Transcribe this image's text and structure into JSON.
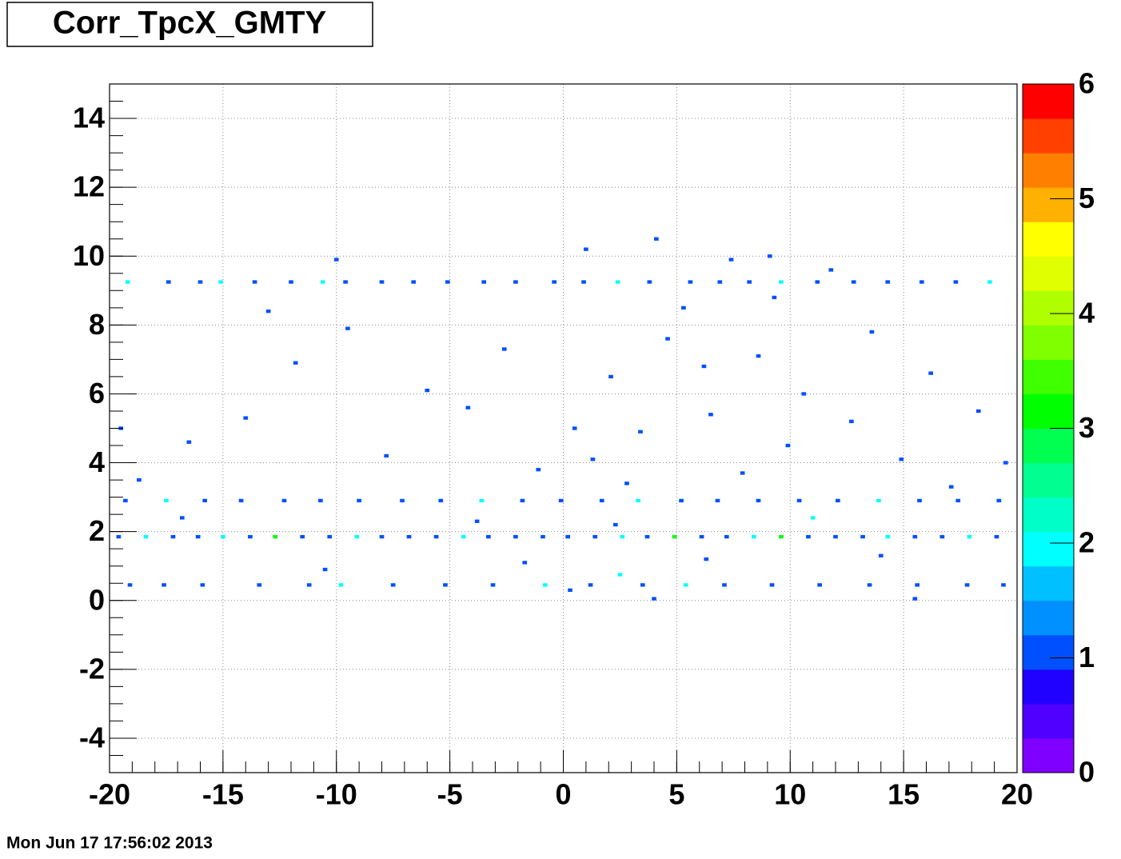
{
  "chart_data": {
    "type": "heatmap",
    "title": "Corr_TpcX_GMTY",
    "footer": "Mon Jun 17 17:56:02 2013",
    "xlim": [
      -20,
      20
    ],
    "xticks": [
      -20,
      -15,
      -10,
      -5,
      0,
      5,
      10,
      15,
      20
    ],
    "ylim": [
      -5,
      15
    ],
    "yticks": [
      -4,
      -2,
      0,
      2,
      4,
      6,
      8,
      10,
      12,
      14
    ],
    "zlim": [
      0,
      6
    ],
    "zticks": [
      0,
      1,
      2,
      3,
      4,
      5,
      6
    ],
    "grid": true,
    "palette": [
      "#8000ff",
      "#5000ff",
      "#2000ff",
      "#0050ff",
      "#0090ff",
      "#00c0ff",
      "#00ffff",
      "#00ffc8",
      "#00ff90",
      "#00ff50",
      "#00ff00",
      "#40ff00",
      "#80ff00",
      "#b0ff00",
      "#e0ff00",
      "#ffff00",
      "#ffb000",
      "#ff8000",
      "#ff4000",
      "#ff0000"
    ],
    "cells": [
      [
        -19.2,
        9.25,
        2
      ],
      [
        -17.4,
        9.25,
        1
      ],
      [
        -16,
        9.25,
        1
      ],
      [
        -15.1,
        9.25,
        2
      ],
      [
        -13.6,
        9.25,
        1
      ],
      [
        -12,
        9.25,
        1
      ],
      [
        -10.6,
        9.25,
        2
      ],
      [
        -9.6,
        9.25,
        1
      ],
      [
        -8,
        9.25,
        1
      ],
      [
        -6.6,
        9.25,
        1
      ],
      [
        -5.1,
        9.25,
        1
      ],
      [
        -3.5,
        9.25,
        1
      ],
      [
        -2.1,
        9.25,
        1
      ],
      [
        -0.4,
        9.25,
        1
      ],
      [
        0.9,
        9.25,
        1
      ],
      [
        2.4,
        9.25,
        2
      ],
      [
        3.8,
        9.25,
        1
      ],
      [
        5.6,
        9.25,
        1
      ],
      [
        6.9,
        9.25,
        1
      ],
      [
        8.2,
        9.25,
        1
      ],
      [
        9.6,
        9.25,
        2
      ],
      [
        11.2,
        9.25,
        1
      ],
      [
        12.8,
        9.25,
        1
      ],
      [
        14.3,
        9.25,
        1
      ],
      [
        15.8,
        9.25,
        1
      ],
      [
        17.3,
        9.25,
        1
      ],
      [
        18.8,
        9.25,
        2
      ],
      [
        -19.6,
        1.85,
        1
      ],
      [
        -18.4,
        1.85,
        2
      ],
      [
        -17.2,
        1.85,
        1
      ],
      [
        -16.1,
        1.85,
        1
      ],
      [
        -15,
        1.85,
        2
      ],
      [
        -13.8,
        1.85,
        1
      ],
      [
        -12.7,
        1.85,
        3
      ],
      [
        -11.5,
        1.85,
        1
      ],
      [
        -10.3,
        1.85,
        1
      ],
      [
        -9.1,
        1.85,
        2
      ],
      [
        -8,
        1.85,
        1
      ],
      [
        -6.8,
        1.85,
        1
      ],
      [
        -5.6,
        1.85,
        1
      ],
      [
        -4.4,
        1.85,
        2
      ],
      [
        -3.3,
        1.85,
        1
      ],
      [
        -2.1,
        1.85,
        1
      ],
      [
        -0.9,
        1.85,
        1
      ],
      [
        0.2,
        1.85,
        1
      ],
      [
        1.4,
        1.85,
        1
      ],
      [
        2.6,
        1.85,
        2
      ],
      [
        3.7,
        1.85,
        1
      ],
      [
        4.9,
        1.85,
        3
      ],
      [
        6.1,
        1.85,
        1
      ],
      [
        7.2,
        1.85,
        1
      ],
      [
        8.4,
        1.85,
        2
      ],
      [
        9.6,
        1.85,
        3
      ],
      [
        10.8,
        1.85,
        1
      ],
      [
        12,
        1.85,
        1
      ],
      [
        13.2,
        1.85,
        1
      ],
      [
        14.3,
        1.85,
        2
      ],
      [
        15.5,
        1.85,
        1
      ],
      [
        16.7,
        1.85,
        1
      ],
      [
        17.9,
        1.85,
        2
      ],
      [
        19.1,
        1.85,
        1
      ],
      [
        -19.3,
        2.9,
        1
      ],
      [
        -17.5,
        2.9,
        2
      ],
      [
        -15.8,
        2.9,
        1
      ],
      [
        -14.2,
        2.9,
        1
      ],
      [
        -12.3,
        2.9,
        1
      ],
      [
        -10.7,
        2.9,
        1
      ],
      [
        -9,
        2.9,
        1
      ],
      [
        -7.1,
        2.9,
        1
      ],
      [
        -5.4,
        2.9,
        1
      ],
      [
        -3.6,
        2.9,
        2
      ],
      [
        -1.8,
        2.9,
        1
      ],
      [
        -0.1,
        2.9,
        1
      ],
      [
        1.7,
        2.9,
        1
      ],
      [
        3.3,
        2.9,
        2
      ],
      [
        5.2,
        2.9,
        1
      ],
      [
        6.8,
        2.9,
        1
      ],
      [
        8.6,
        2.9,
        1
      ],
      [
        10.4,
        2.9,
        1
      ],
      [
        12.1,
        2.9,
        1
      ],
      [
        13.9,
        2.9,
        2
      ],
      [
        15.7,
        2.9,
        1
      ],
      [
        17.4,
        2.9,
        1
      ],
      [
        19.2,
        2.9,
        1
      ],
      [
        -19.1,
        0.45,
        1
      ],
      [
        -17.6,
        0.45,
        1
      ],
      [
        -15.9,
        0.45,
        1
      ],
      [
        -13.4,
        0.45,
        1
      ],
      [
        -11.2,
        0.45,
        1
      ],
      [
        -9.8,
        0.45,
        2
      ],
      [
        -7.5,
        0.45,
        1
      ],
      [
        -5.2,
        0.45,
        1
      ],
      [
        -3.1,
        0.45,
        1
      ],
      [
        -0.8,
        0.45,
        2
      ],
      [
        0.3,
        0.3,
        1
      ],
      [
        1.2,
        0.45,
        1
      ],
      [
        3.5,
        0.45,
        1
      ],
      [
        5.4,
        0.45,
        2
      ],
      [
        7.1,
        0.45,
        1
      ],
      [
        9.2,
        0.45,
        1
      ],
      [
        11.3,
        0.45,
        1
      ],
      [
        13.5,
        0.45,
        1
      ],
      [
        15.6,
        0.45,
        1
      ],
      [
        17.8,
        0.45,
        1
      ],
      [
        19.4,
        0.45,
        1
      ],
      [
        -18.7,
        3.5,
        1
      ],
      [
        -16.5,
        4.6,
        1
      ],
      [
        -14,
        5.3,
        1
      ],
      [
        -11.8,
        6.9,
        1
      ],
      [
        -9.5,
        7.9,
        1
      ],
      [
        -7.8,
        4.2,
        1
      ],
      [
        -6,
        6.1,
        1
      ],
      [
        -4.2,
        5.6,
        1
      ],
      [
        -2.6,
        7.3,
        1
      ],
      [
        -1.1,
        3.8,
        1
      ],
      [
        0.5,
        5,
        1
      ],
      [
        1.3,
        4.1,
        1
      ],
      [
        2.1,
        6.5,
        1
      ],
      [
        2.8,
        3.4,
        1
      ],
      [
        3.4,
        4.9,
        1
      ],
      [
        4.1,
        10.5,
        1
      ],
      [
        4.6,
        7.6,
        1
      ],
      [
        5.3,
        8.5,
        1
      ],
      [
        6.2,
        6.8,
        1
      ],
      [
        6.5,
        5.4,
        1
      ],
      [
        7.4,
        9.9,
        1
      ],
      [
        7.9,
        3.7,
        1
      ],
      [
        8.6,
        7.1,
        1
      ],
      [
        9.3,
        8.8,
        1
      ],
      [
        9.9,
        4.5,
        1
      ],
      [
        10.6,
        6,
        1
      ],
      [
        11.8,
        9.6,
        1
      ],
      [
        12.7,
        5.2,
        1
      ],
      [
        13.6,
        7.8,
        1
      ],
      [
        14.9,
        4.1,
        1
      ],
      [
        16.2,
        6.6,
        1
      ],
      [
        17.1,
        3.3,
        1
      ],
      [
        18.3,
        5.5,
        1
      ],
      [
        19.5,
        4,
        1
      ],
      [
        -19.5,
        5,
        1
      ],
      [
        -13,
        8.4,
        1
      ],
      [
        -10,
        9.9,
        1
      ],
      [
        1,
        10.2,
        1
      ],
      [
        9.1,
        10,
        1
      ],
      [
        -3.8,
        2.3,
        1
      ],
      [
        2.3,
        2.2,
        1
      ],
      [
        11,
        2.4,
        2
      ],
      [
        -16.8,
        2.4,
        1
      ],
      [
        6.3,
        1.2,
        1
      ],
      [
        -1.7,
        1.1,
        1
      ],
      [
        14,
        1.3,
        1
      ],
      [
        4,
        0.05,
        1
      ],
      [
        -10.5,
        0.9,
        1
      ],
      [
        15.5,
        0.05,
        1
      ],
      [
        2.5,
        0.75,
        2
      ]
    ]
  }
}
